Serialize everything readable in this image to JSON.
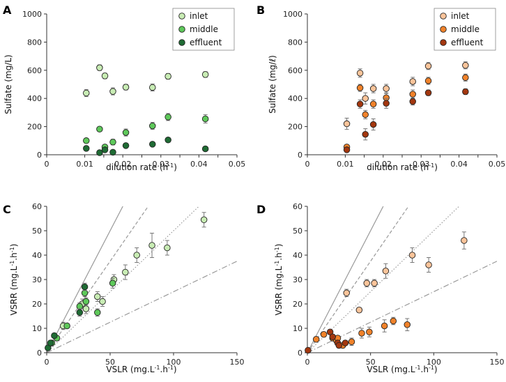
{
  "colors": {
    "green": [
      "#c8ecb4",
      "#5ec85a",
      "#1f6b34"
    ],
    "orange": [
      "#fbc49a",
      "#f0822a",
      "#a3370f"
    ],
    "errorbar": "#777777",
    "axis": "#333333",
    "refline": "#999999"
  },
  "chart_data": [
    {
      "panel": "A",
      "type": "scatter",
      "palette": "green",
      "xlabel": "dilution rate (h",
      "xlabel_sup": "-1",
      "xlabel_end": ")",
      "ylabel": "Sulfate (mg/L)",
      "xlim": [
        0,
        0.05
      ],
      "ylim": [
        0,
        1000
      ],
      "xticks": [
        "0",
        "0.01",
        "0.015",
        "0.02",
        "0.025",
        "0.03",
        "0.035",
        "0.04",
        "0.045",
        "0.05"
      ],
      "xtick_values": [
        0,
        0.01,
        0.015,
        0.02,
        0.025,
        0.03,
        0.035,
        0.04,
        0.045,
        0.05
      ],
      "xtick_labels": [
        "0",
        "0.01",
        "",
        "0.02",
        "",
        "0.03",
        "",
        "0.04",
        "",
        "0.05"
      ],
      "ytick_values": [
        0,
        200,
        400,
        600,
        800,
        1000
      ],
      "ytick_labels": [
        "0",
        "200",
        "400",
        "600",
        "800",
        "1000"
      ],
      "legend_position": "top-right",
      "series": [
        {
          "name": "inlet",
          "x": [
            0.0104,
            0.0139,
            0.0153,
            0.0174,
            0.0208,
            0.0278,
            0.0319,
            0.0417
          ],
          "y": [
            438,
            618,
            560,
            450,
            480,
            478,
            557,
            570
          ],
          "err": [
            25,
            20,
            20,
            25,
            20,
            25,
            20,
            20
          ]
        },
        {
          "name": "middle",
          "x": [
            0.0104,
            0.0139,
            0.0153,
            0.0174,
            0.0208,
            0.0278,
            0.0319,
            0.0417
          ],
          "y": [
            100,
            182,
            55,
            90,
            158,
            205,
            268,
            255
          ],
          "err": [
            15,
            15,
            15,
            20,
            25,
            25,
            25,
            30
          ]
        },
        {
          "name": "effluent",
          "x": [
            0.0104,
            0.0139,
            0.0153,
            0.0174,
            0.0208,
            0.0278,
            0.0319,
            0.0417
          ],
          "y": [
            45,
            15,
            35,
            18,
            65,
            75,
            105,
            42
          ],
          "err": [
            8,
            8,
            8,
            8,
            8,
            8,
            8,
            8
          ]
        }
      ]
    },
    {
      "panel": "B",
      "type": "scatter",
      "palette": "orange",
      "xlabel": "dilution rate (h",
      "xlabel_sup": "-1",
      "xlabel_end": ")",
      "ylabel": "Sulfate (mg/ℓ)",
      "xlim": [
        0,
        0.05
      ],
      "ylim": [
        0,
        1000
      ],
      "xtick_values": [
        0,
        0.01,
        0.015,
        0.02,
        0.025,
        0.03,
        0.035,
        0.04,
        0.045,
        0.05
      ],
      "xtick_labels": [
        "0",
        "0.01",
        "",
        "0.02",
        "",
        "0.03",
        "",
        "0.04",
        "",
        "0.05"
      ],
      "ytick_values": [
        0,
        200,
        400,
        600,
        800,
        1000
      ],
      "ytick_labels": [
        "0",
        "200",
        "400",
        "600",
        "800",
        "1000"
      ],
      "legend_position": "top-right",
      "series": [
        {
          "name": "inlet",
          "x": [
            0.0104,
            0.0139,
            0.0153,
            0.0174,
            0.0208,
            0.0278,
            0.0319,
            0.0417
          ],
          "y": [
            220,
            580,
            400,
            470,
            470,
            520,
            630,
            635
          ],
          "err": [
            40,
            30,
            40,
            30,
            30,
            30,
            25,
            25
          ]
        },
        {
          "name": "middle",
          "x": [
            0.0104,
            0.0139,
            0.0153,
            0.0174,
            0.0208,
            0.0278,
            0.0319,
            0.0417
          ],
          "y": [
            55,
            475,
            285,
            360,
            405,
            430,
            525,
            548
          ],
          "err": [
            15,
            25,
            30,
            30,
            30,
            30,
            25,
            25
          ]
        },
        {
          "name": "effluent",
          "x": [
            0.0104,
            0.0139,
            0.0153,
            0.0174,
            0.0208,
            0.0278,
            0.0319,
            0.0417
          ],
          "y": [
            35,
            360,
            145,
            215,
            365,
            378,
            440,
            448
          ],
          "err": [
            10,
            30,
            40,
            40,
            35,
            25,
            20,
            20
          ]
        }
      ]
    },
    {
      "panel": "C",
      "type": "scatter",
      "palette": "green",
      "xlabel": "VSLR (mg.L",
      "xlabel_sup": "-1",
      "xlabel_mid": ".h",
      "xlabel_sup2": "-1",
      "xlabel_end": ")",
      "ylabel": "VSRR (mg.L",
      "ylabel_sup": "-1",
      "ylabel_mid": ".h",
      "ylabel_sup2": "-1",
      "ylabel_end": ")",
      "xlim": [
        0,
        150
      ],
      "ylim": [
        0,
        60
      ],
      "xtick_values": [
        0,
        50,
        100,
        150
      ],
      "xtick_labels": [
        "0",
        "50",
        "100",
        "150"
      ],
      "ytick_values": [
        0,
        10,
        20,
        30,
        40,
        50,
        60
      ],
      "ytick_labels": [
        "0",
        "10",
        "20",
        "30",
        "40",
        "50",
        "60"
      ],
      "reference_lines": [
        {
          "slope": 1.0,
          "style": "solid"
        },
        {
          "slope": 0.75,
          "style": "dashed"
        },
        {
          "slope": 0.5,
          "style": "dotted"
        },
        {
          "slope": 0.25,
          "style": "dashdot"
        }
      ],
      "series": [
        {
          "name": "inlet",
          "x": [
            13,
            28,
            31,
            40,
            44,
            53,
            62,
            71,
            83,
            95,
            124
          ],
          "y": [
            11,
            20,
            18,
            23,
            21,
            30,
            33,
            40,
            44,
            43,
            54.5
          ],
          "err": [
            1.5,
            2,
            2,
            2,
            2,
            2,
            3,
            3,
            5,
            3,
            3
          ]
        },
        {
          "name": "middle",
          "x": [
            4,
            8,
            16,
            26,
            30,
            31,
            52,
            40
          ],
          "y": [
            4,
            6,
            11,
            19,
            24.5,
            21,
            28.5,
            16.5
          ],
          "err": [
            0.5,
            0.5,
            1,
            1.5,
            1.5,
            1.5,
            2,
            1.5
          ]
        },
        {
          "name": "effluent",
          "x": [
            1,
            3,
            6,
            26,
            30
          ],
          "y": [
            2,
            4,
            7,
            16.5,
            27
          ],
          "err": [
            0.5,
            0.5,
            0.5,
            1.5,
            1.5
          ]
        }
      ]
    },
    {
      "panel": "D",
      "type": "scatter",
      "palette": "orange",
      "xlabel": "VSLR (mg.L",
      "xlabel_sup": "-1",
      "xlabel_mid": ".h",
      "xlabel_sup2": "-1",
      "xlabel_end": ")",
      "ylabel": "VSRR (mg.L",
      "ylabel_sup": "-1",
      "ylabel_mid": ".h",
      "ylabel_sup2": "-1",
      "ylabel_end": ")",
      "xlim": [
        0,
        150
      ],
      "ylim": [
        0,
        60
      ],
      "xtick_values": [
        0,
        50,
        100,
        150
      ],
      "xtick_labels": [
        "0",
        "50",
        "100",
        "150"
      ],
      "ytick_values": [
        0,
        10,
        20,
        30,
        40,
        50,
        60
      ],
      "ytick_labels": [
        "0",
        "10",
        "20",
        "30",
        "40",
        "50",
        "60"
      ],
      "reference_lines": [
        {
          "slope": 1.0,
          "style": "solid"
        },
        {
          "slope": 0.75,
          "style": "dashed"
        },
        {
          "slope": 0.5,
          "style": "dotted"
        },
        {
          "slope": 0.25,
          "style": "dashdot"
        }
      ],
      "series": [
        {
          "name": "inlet",
          "x": [
            31,
            41,
            47,
            53,
            62,
            83,
            96,
            124
          ],
          "y": [
            24.5,
            17.5,
            28.5,
            28.5,
            33.5,
            40,
            36,
            46
          ],
          "err": [
            1.5,
            1,
            1.5,
            1.5,
            3,
            3,
            3,
            3.5
          ]
        },
        {
          "name": "middle",
          "x": [
            7,
            13,
            20,
            23,
            24,
            28,
            35,
            43,
            49,
            61,
            68,
            79
          ],
          "y": [
            5.5,
            7.5,
            6,
            5,
            6,
            3,
            4.5,
            8,
            8.5,
            11,
            13,
            11.5
          ],
          "err": [
            1,
            1,
            1,
            1,
            1,
            1,
            1.5,
            2,
            2,
            2.5,
            1.5,
            2.5
          ]
        },
        {
          "name": "effluent",
          "x": [
            0.5,
            18,
            20,
            24,
            25,
            30
          ],
          "y": [
            1,
            8.5,
            6.5,
            4,
            3,
            4
          ],
          "err": [
            0.3,
            1,
            1,
            1,
            1,
            1
          ]
        }
      ]
    }
  ]
}
